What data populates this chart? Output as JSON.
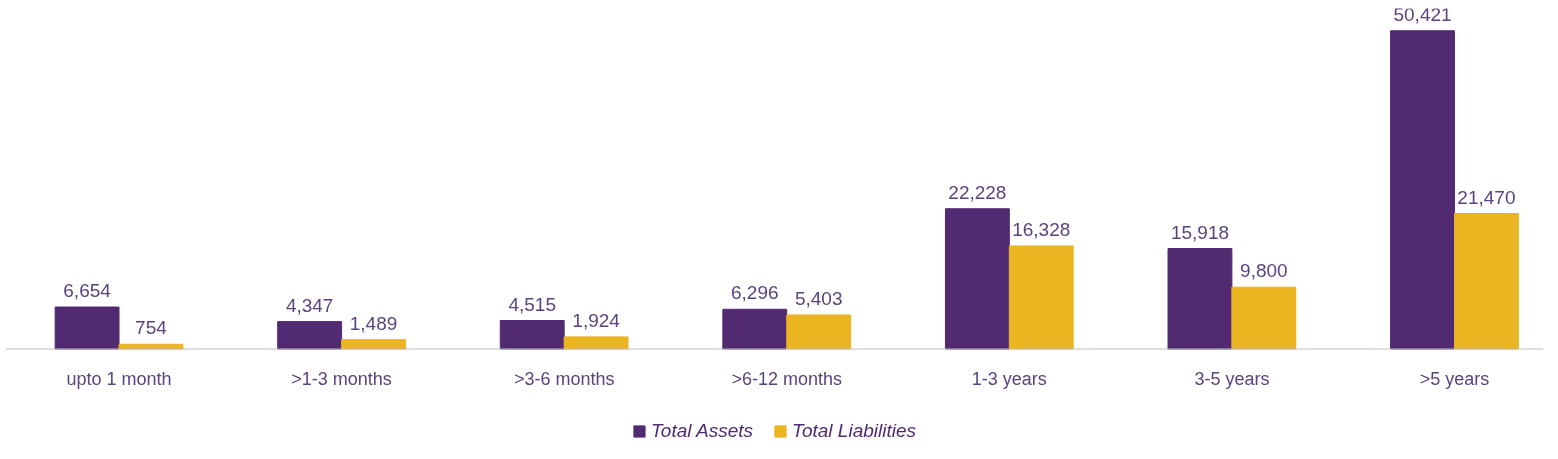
{
  "chart_data": {
    "type": "bar",
    "categories": [
      "upto 1 month",
      ">1-3 months",
      ">3-6 months",
      ">6-12 months",
      "1-3 years",
      "3-5 years",
      ">5 years"
    ],
    "series": [
      {
        "name": "Total Assets",
        "color": "#522a72",
        "values": [
          6654,
          4347,
          4515,
          6296,
          22228,
          15918,
          50421
        ],
        "value_labels": [
          "6,654",
          "4,347",
          "4,515",
          "6,296",
          "22,228",
          "15,918",
          "50,421"
        ]
      },
      {
        "name": "Total Liabilities",
        "color": "#ebb421",
        "values": [
          754,
          1489,
          1924,
          5403,
          16328,
          9800,
          21470
        ],
        "value_labels": [
          "754",
          "1,489",
          "1,924",
          "5,403",
          "16,328",
          "9,800",
          "21,470"
        ]
      }
    ],
    "legend": "bottom"
  }
}
